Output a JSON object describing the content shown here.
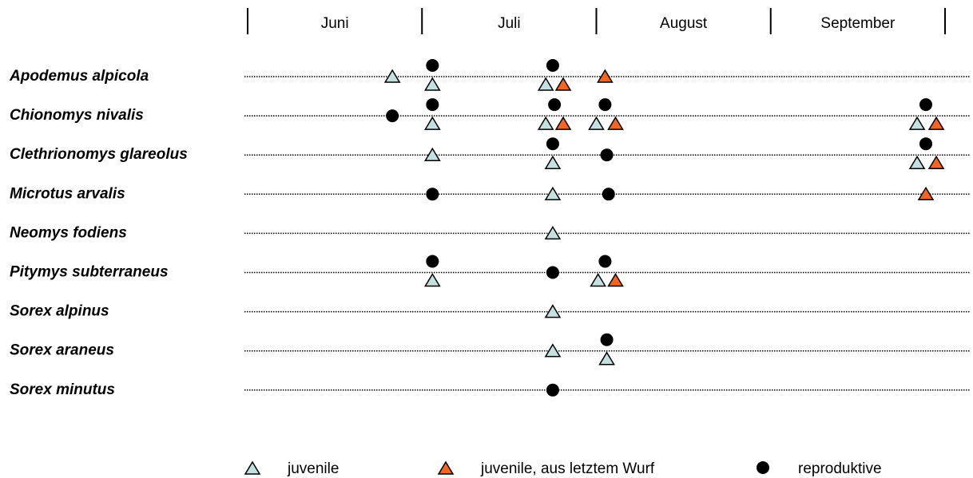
{
  "chart_data": {
    "type": "scatter",
    "categories": [
      "Juni",
      "Juli",
      "August",
      "September"
    ],
    "xlim": [
      0,
      4
    ],
    "xticks": [
      0,
      1,
      2,
      3,
      4
    ],
    "species": [
      "Apodemus alpicola",
      "Chionomys nivalis",
      "Clethrionomys glareolus",
      "Microtus arvalis",
      "Neomys fodiens",
      "Pitymys subterraneus",
      "Sorex alpinus",
      "Sorex araneus",
      "Sorex minutus"
    ],
    "series": [
      {
        "name": "juvenile",
        "color": "#c5e0e0",
        "marker": "triangle",
        "x": [
          0.83,
          1.06,
          1.71,
          1.06,
          1.71,
          2.0,
          3.84,
          1.06,
          1.75,
          3.84,
          1.75,
          1.75,
          1.06,
          2.01,
          1.75,
          1.75,
          2.06
        ],
        "y": [
          "Apodemus alpicola",
          "Apodemus alpicola",
          "Apodemus alpicola",
          "Chionomys nivalis",
          "Chionomys nivalis",
          "Chionomys nivalis",
          "Chionomys nivalis",
          "Clethrionomys glareolus",
          "Clethrionomys glareolus",
          "Clethrionomys glareolus",
          "Microtus arvalis",
          "Neomys fodiens",
          "Pitymys subterraneus",
          "Pitymys subterraneus",
          "Sorex alpinus",
          "Sorex araneus",
          "Sorex araneus"
        ]
      },
      {
        "name": "juvenile, aus letztem Wurf",
        "color": "#f26522",
        "marker": "triangle",
        "x": [
          1.81,
          2.05,
          1.81,
          2.11,
          3.95,
          3.95,
          3.89,
          2.11
        ],
        "y": [
          "Apodemus alpicola",
          "Apodemus alpicola",
          "Chionomys nivalis",
          "Chionomys nivalis",
          "Chionomys nivalis",
          "Clethrionomys glareolus",
          "Microtus arvalis",
          "Pitymys subterraneus"
        ]
      },
      {
        "name": "reproduktive",
        "color": "#000000",
        "marker": "circle",
        "x": [
          1.06,
          1.75,
          0.83,
          1.06,
          1.76,
          2.05,
          3.89,
          1.75,
          2.06,
          3.89,
          1.06,
          2.07,
          1.06,
          1.75,
          2.05,
          2.06,
          1.75
        ],
        "y": [
          "Apodemus alpicola",
          "Apodemus alpicola",
          "Chionomys nivalis",
          "Chionomys nivalis",
          "Chionomys nivalis",
          "Chionomys nivalis",
          "Chionomys nivalis",
          "Clethrionomys glareolus",
          "Clethrionomys glareolus",
          "Clethrionomys glareolus",
          "Microtus arvalis",
          "Microtus arvalis",
          "Pitymys subterraneus",
          "Pitymys subterraneus",
          "Pitymys subterraneus",
          "Sorex araneus",
          "Sorex minutus"
        ]
      }
    ]
  }
}
